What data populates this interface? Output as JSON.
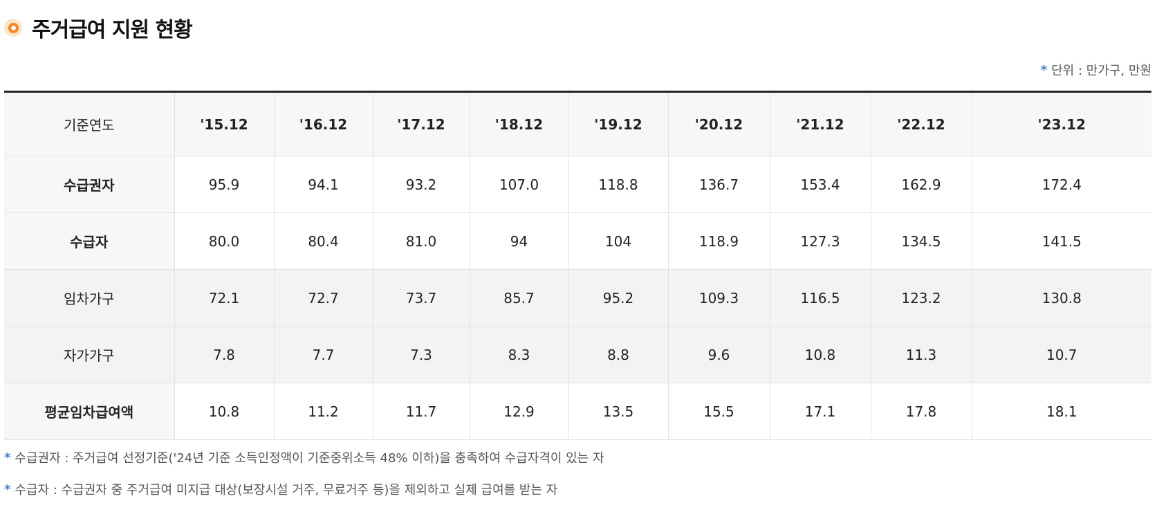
{
  "title": "주거급여 지원 현황",
  "unit": {
    "asterisk": "*",
    "text": "단위 : 만가구, 만원"
  },
  "table": {
    "header_label": "기준연도",
    "years": [
      "'15.12",
      "'16.12",
      "'17.12",
      "'18.12",
      "'19.12",
      "'20.12",
      "'21.12",
      "'22.12",
      "'23.12"
    ],
    "rows": [
      {
        "label": "수급권자",
        "values": [
          "95.9",
          "94.1",
          "93.2",
          "107.0",
          "118.8",
          "136.7",
          "153.4",
          "162.9",
          "172.4"
        ]
      },
      {
        "label": "수급자",
        "values": [
          "80.0",
          "80.4",
          "81.0",
          "94",
          "104",
          "118.9",
          "127.3",
          "134.5",
          "141.5"
        ]
      },
      {
        "label": "임차가구",
        "values": [
          "72.1",
          "72.7",
          "73.7",
          "85.7",
          "95.2",
          "109.3",
          "116.5",
          "123.2",
          "130.8"
        ]
      },
      {
        "label": "자가가구",
        "values": [
          "7.8",
          "7.7",
          "7.3",
          "8.3",
          "8.8",
          "9.6",
          "10.8",
          "11.3",
          "10.7"
        ]
      },
      {
        "label": "평균임차급여액",
        "values": [
          "10.8",
          "11.2",
          "11.7",
          "12.9",
          "13.5",
          "15.5",
          "17.1",
          "17.8",
          "18.1"
        ]
      }
    ]
  },
  "notes": [
    {
      "asterisk": "*",
      "text": "수급권자 : 주거급여 선정기준('24년 기준 소득인정액이 기준중위소득 48% 이하)을 충족하여 수급자격이 있는 자"
    },
    {
      "asterisk": "*",
      "text": "수급자 : 수급권자 중 주거급여 미지급 대상(보장시설 거주, 무료거주 등)을 제외하고 실제 급여를 받는 자"
    }
  ],
  "colors": {
    "accent_orange": "#f58220",
    "asterisk_blue": "#3a7bd5",
    "table_top_border": "#222222",
    "shaded_row": "#f3f3f3"
  }
}
